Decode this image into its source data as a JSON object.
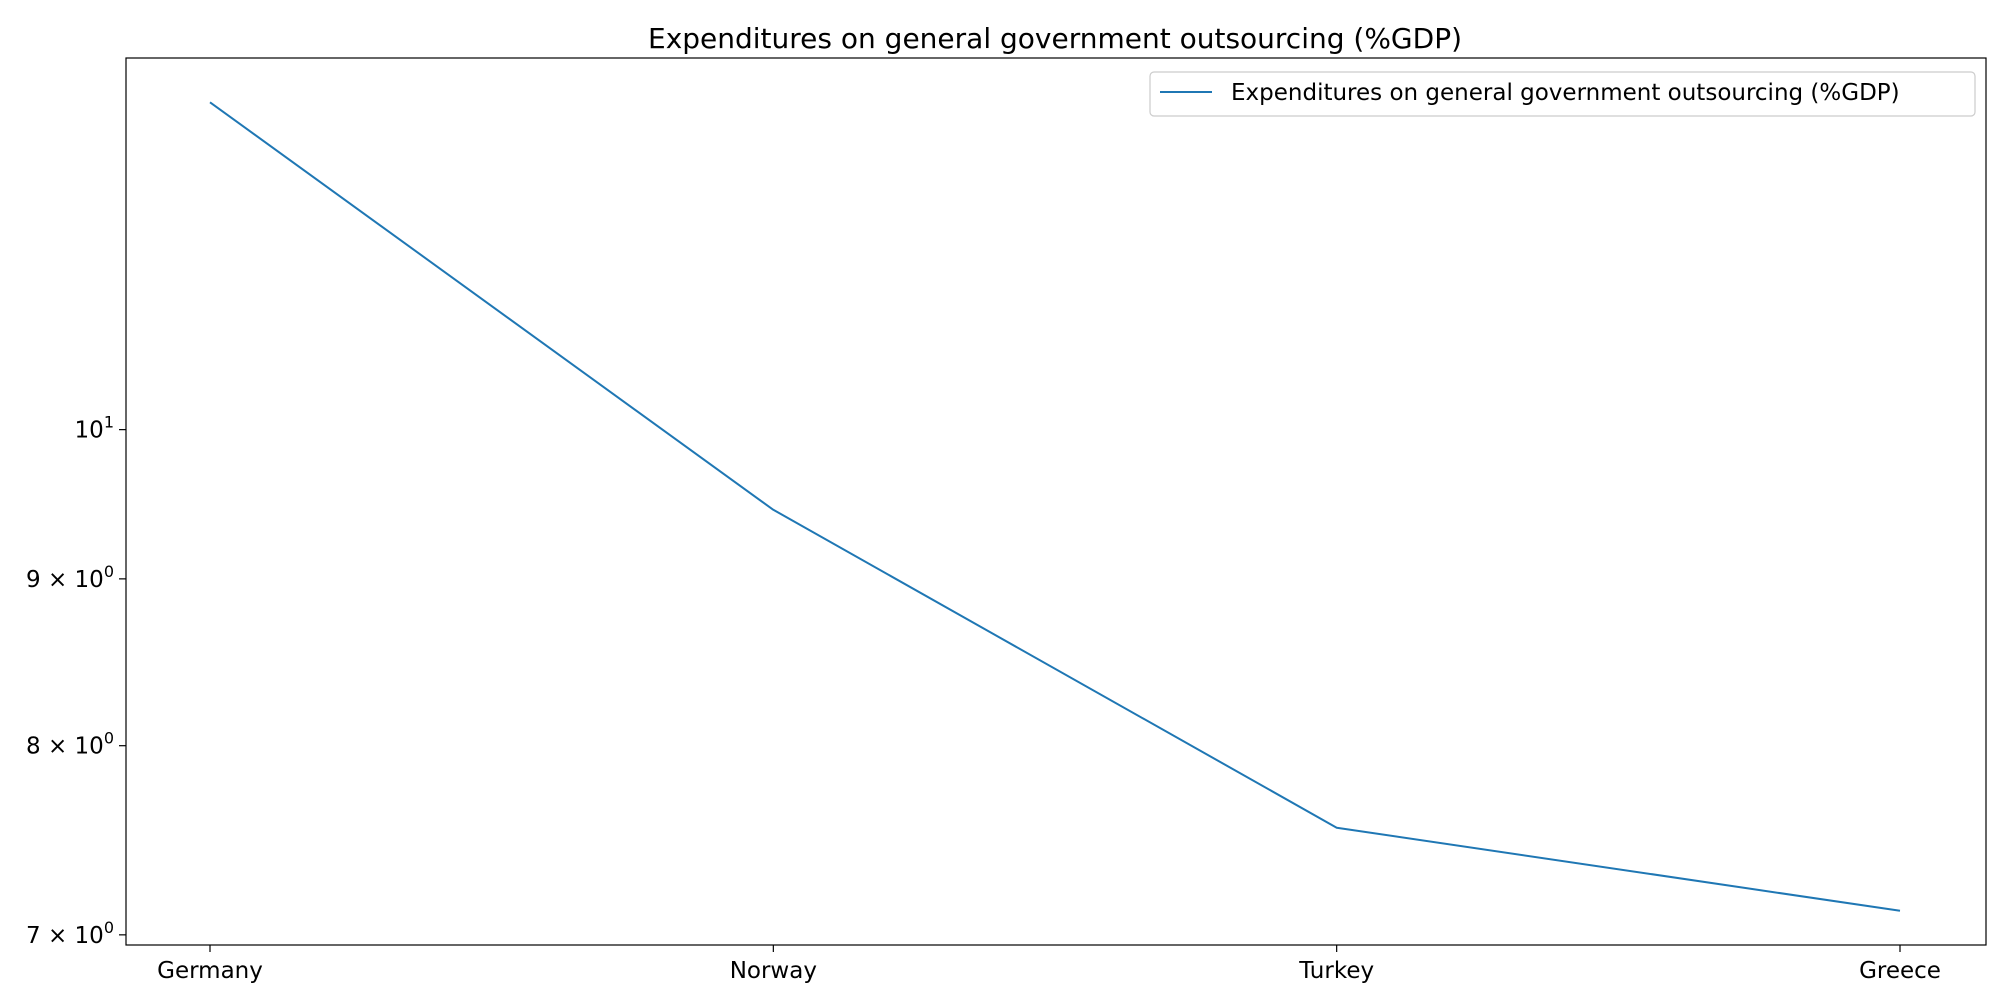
{
  "chart_data": {
    "type": "line",
    "title": "Expenditures on general government outsourcing (%GDP)",
    "xlabel": "",
    "ylabel": "",
    "y_scale": "log",
    "ylim": [
      6.95,
      13.0
    ],
    "categories": [
      "Germany",
      "Norway",
      "Turkey",
      "Greece"
    ],
    "series": [
      {
        "name": "Expenditures on general government outsourcing (%GDP)",
        "values": [
          12.6,
          9.45,
          7.55,
          7.12
        ],
        "color": "#1f77b4"
      }
    ],
    "y_ticks": [
      {
        "value": 7,
        "base": "7 × 10",
        "exp": "0"
      },
      {
        "value": 8,
        "base": "8 × 10",
        "exp": "0"
      },
      {
        "value": 9,
        "base": "9 × 10",
        "exp": "0"
      },
      {
        "value": 10,
        "base": "10",
        "exp": "1"
      }
    ],
    "legend": {
      "position": "top-right",
      "entries": [
        "Expenditures on general government outsourcing (%GDP)"
      ]
    },
    "grid": false
  }
}
